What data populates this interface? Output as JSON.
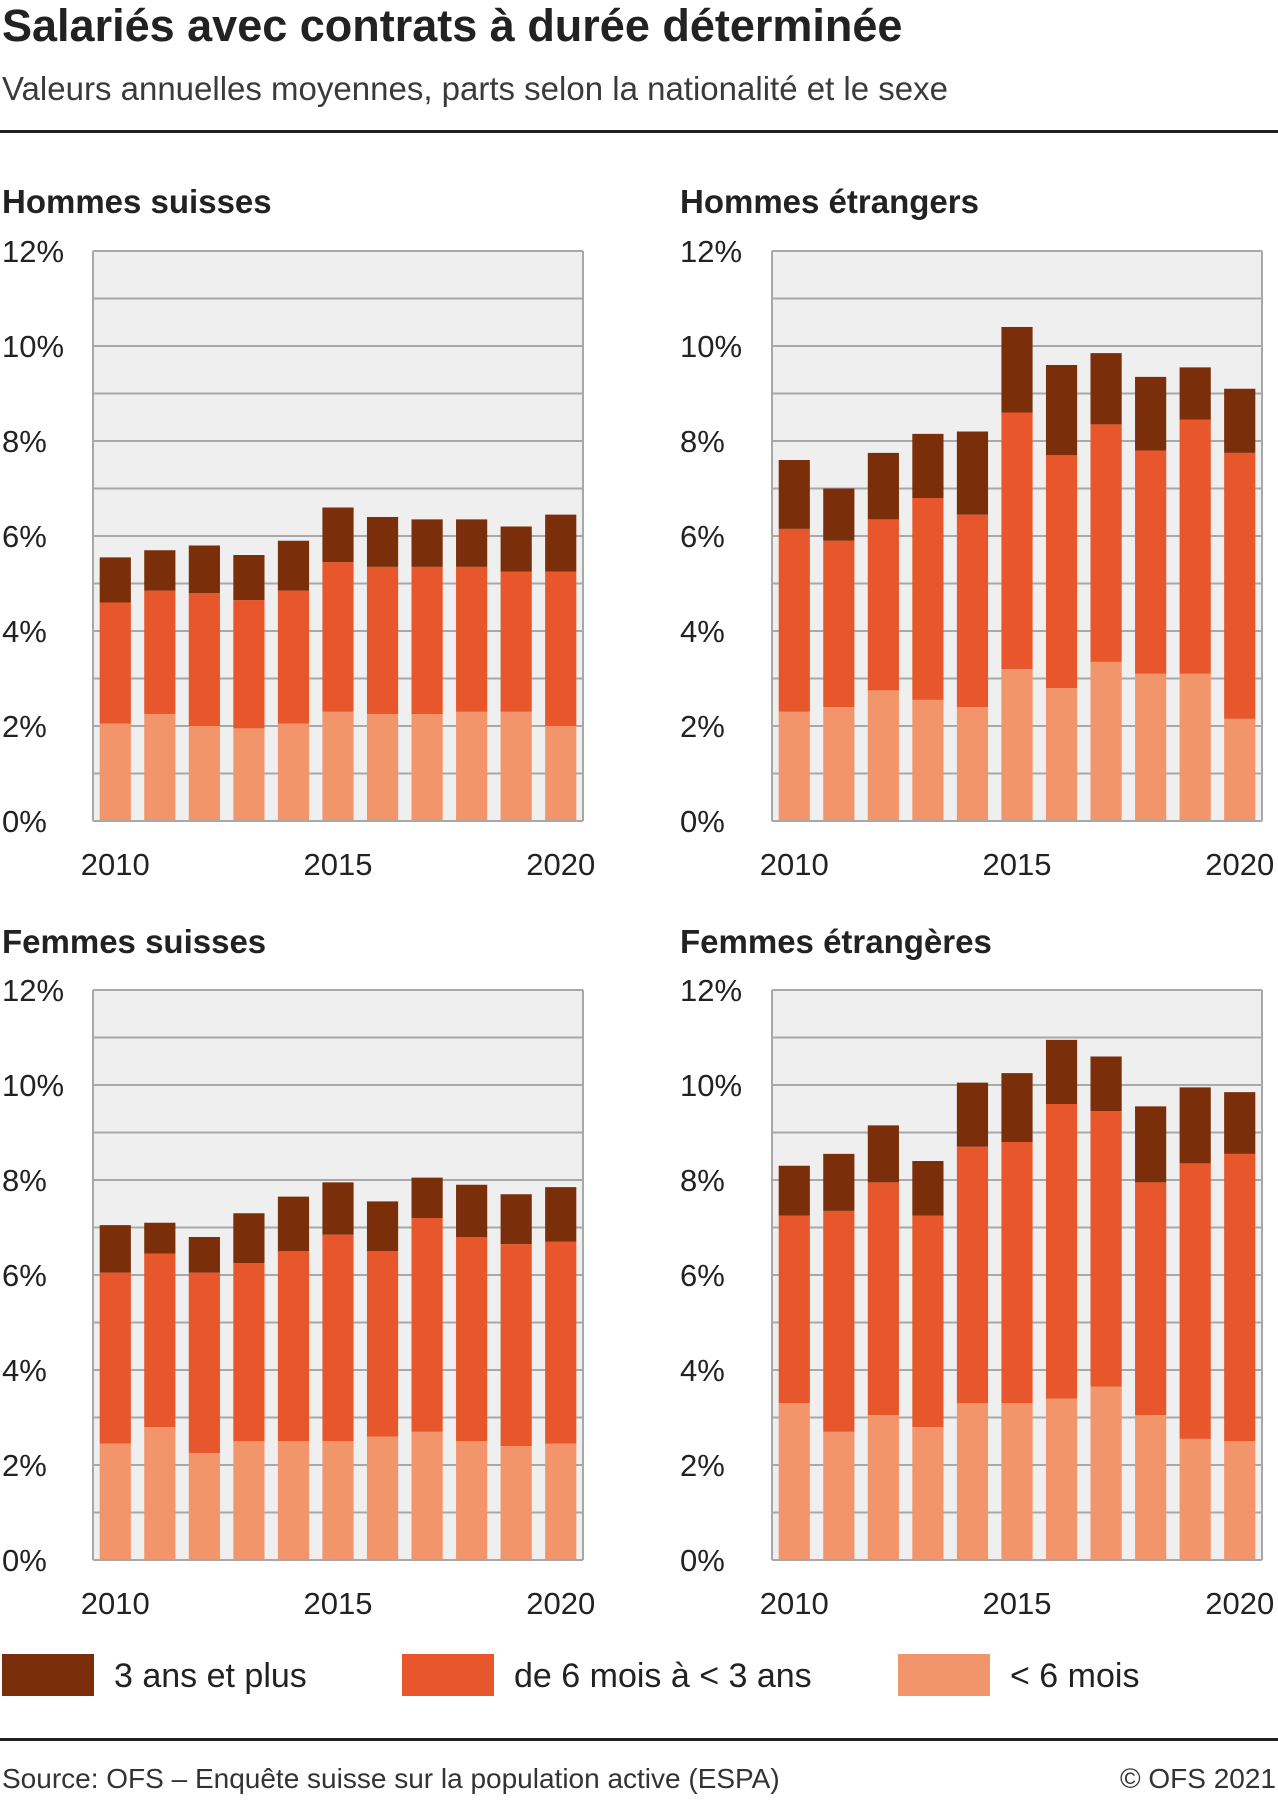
{
  "title": "Salariés avec contrats à durée déterminée",
  "subtitle": "Valeurs annuelles moyennes, parts selon la nationalité et le sexe",
  "source": "Source: OFS – Enquête suisse sur la population active (ESPA)",
  "copyright": "© OFS 2021",
  "legend": [
    {
      "label": "3 ans et plus",
      "color": "#7a2e0a"
    },
    {
      "label": "de 6 mois à < 3 ans",
      "color": "#e8572b"
    },
    {
      "label": "< 6 mois",
      "color": "#f2956a"
    }
  ],
  "chart_data": [
    {
      "type": "bar",
      "stacked": true,
      "title": "Hommes suisses",
      "x": [
        2010,
        2011,
        2012,
        2013,
        2014,
        2015,
        2016,
        2017,
        2018,
        2019,
        2020
      ],
      "xticks": [
        "2010",
        "2015",
        "2020"
      ],
      "yticks": [
        "0%",
        "2%",
        "4%",
        "6%",
        "8%",
        "10%",
        "12%"
      ],
      "ylim": [
        0,
        12
      ],
      "grid": true,
      "series": [
        {
          "name": "< 6 mois",
          "values": [
            2.05,
            2.25,
            2.0,
            1.95,
            2.05,
            2.3,
            2.25,
            2.25,
            2.3,
            2.3,
            2.0
          ]
        },
        {
          "name": "de 6 mois à < 3 ans",
          "values": [
            2.55,
            2.6,
            2.8,
            2.7,
            2.8,
            3.15,
            3.1,
            3.1,
            3.05,
            2.95,
            3.25
          ]
        },
        {
          "name": "3 ans et plus",
          "values": [
            0.95,
            0.85,
            1.0,
            0.95,
            1.05,
            1.15,
            1.05,
            1.0,
            1.0,
            0.95,
            1.2
          ]
        }
      ]
    },
    {
      "type": "bar",
      "stacked": true,
      "title": "Hommes étrangers",
      "x": [
        2010,
        2011,
        2012,
        2013,
        2014,
        2015,
        2016,
        2017,
        2018,
        2019,
        2020
      ],
      "xticks": [
        "2010",
        "2015",
        "2020"
      ],
      "yticks": [
        "0%",
        "2%",
        "4%",
        "6%",
        "8%",
        "10%",
        "12%"
      ],
      "ylim": [
        0,
        12
      ],
      "grid": true,
      "series": [
        {
          "name": "< 6 mois",
          "values": [
            2.3,
            2.4,
            2.75,
            2.55,
            2.4,
            3.2,
            2.8,
            3.35,
            3.1,
            3.1,
            2.15
          ]
        },
        {
          "name": "de 6 mois à < 3 ans",
          "values": [
            3.85,
            3.5,
            3.6,
            4.25,
            4.05,
            5.4,
            4.9,
            5.0,
            4.7,
            5.35,
            5.6
          ]
        },
        {
          "name": "3 ans et plus",
          "values": [
            1.45,
            1.1,
            1.4,
            1.35,
            1.75,
            1.8,
            1.9,
            1.5,
            1.55,
            1.1,
            1.35
          ]
        }
      ]
    },
    {
      "type": "bar",
      "stacked": true,
      "title": "Femmes suisses",
      "x": [
        2010,
        2011,
        2012,
        2013,
        2014,
        2015,
        2016,
        2017,
        2018,
        2019,
        2020
      ],
      "xticks": [
        "2010",
        "2015",
        "2020"
      ],
      "yticks": [
        "0%",
        "2%",
        "4%",
        "6%",
        "8%",
        "10%",
        "12%"
      ],
      "ylim": [
        0,
        12
      ],
      "grid": true,
      "series": [
        {
          "name": "< 6 mois",
          "values": [
            2.45,
            2.8,
            2.25,
            2.5,
            2.5,
            2.5,
            2.6,
            2.7,
            2.5,
            2.4,
            2.45
          ]
        },
        {
          "name": "de 6 mois à < 3 ans",
          "values": [
            3.6,
            3.65,
            3.8,
            3.75,
            4.0,
            4.35,
            3.9,
            4.5,
            4.3,
            4.25,
            4.25
          ]
        },
        {
          "name": "3 ans et plus",
          "values": [
            1.0,
            0.65,
            0.75,
            1.05,
            1.15,
            1.1,
            1.05,
            0.85,
            1.1,
            1.05,
            1.15
          ]
        }
      ]
    },
    {
      "type": "bar",
      "stacked": true,
      "title": "Femmes étrangères",
      "x": [
        2010,
        2011,
        2012,
        2013,
        2014,
        2015,
        2016,
        2017,
        2018,
        2019,
        2020
      ],
      "xticks": [
        "2010",
        "2015",
        "2020"
      ],
      "yticks": [
        "0%",
        "2%",
        "4%",
        "6%",
        "8%",
        "10%",
        "12%"
      ],
      "ylim": [
        0,
        12
      ],
      "grid": true,
      "series": [
        {
          "name": "< 6 mois",
          "values": [
            3.3,
            2.7,
            3.05,
            2.8,
            3.3,
            3.3,
            3.4,
            3.65,
            3.05,
            2.55,
            2.5
          ]
        },
        {
          "name": "de 6 mois à < 3 ans",
          "values": [
            3.95,
            4.65,
            4.9,
            4.45,
            5.4,
            5.5,
            6.2,
            5.8,
            4.9,
            5.8,
            6.05
          ]
        },
        {
          "name": "3 ans et plus",
          "values": [
            1.05,
            1.2,
            1.2,
            1.15,
            1.35,
            1.45,
            1.35,
            1.15,
            1.6,
            1.6,
            1.3
          ]
        }
      ]
    }
  ]
}
